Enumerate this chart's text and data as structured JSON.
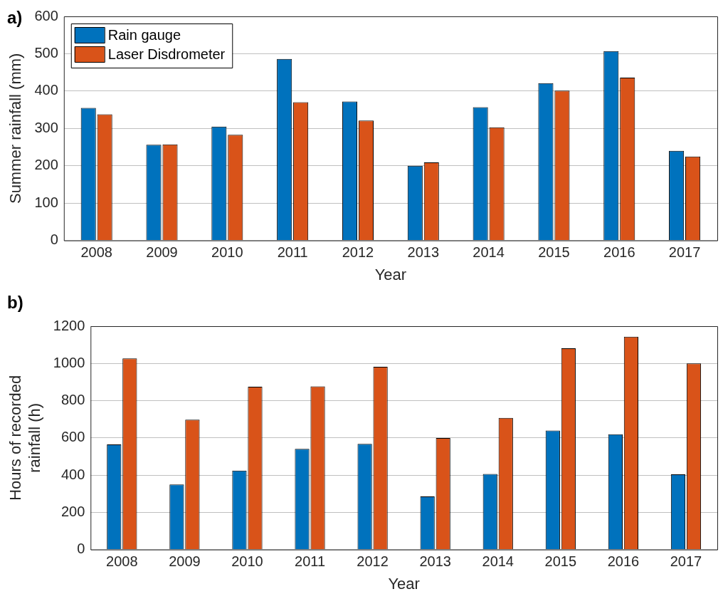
{
  "chart_data": [
    {
      "type": "bar",
      "categories": [
        "2008",
        "2009",
        "2010",
        "2011",
        "2012",
        "2013",
        "2014",
        "2015",
        "2016",
        "2017"
      ],
      "xlabel": "Year",
      "ylabel": "Summer rainfall (mm)",
      "ylim": [
        0,
        600
      ],
      "yticks": [
        0,
        100,
        200,
        300,
        400,
        500,
        600
      ],
      "grid": "y",
      "legend": "top left",
      "annotations": [
        "a)"
      ],
      "series": [
        {
          "name": "Rain gauge",
          "color": "#0072bd",
          "values": [
            355,
            256,
            305,
            486,
            372,
            200,
            357,
            421,
            507,
            240
          ]
        },
        {
          "name": "Laser Disdrometer",
          "color": "#d95319",
          "values": [
            338,
            257,
            283,
            370,
            321,
            209,
            303,
            401,
            436,
            225
          ]
        }
      ]
    },
    {
      "type": "bar",
      "categories": [
        "2008",
        "2009",
        "2010",
        "2011",
        "2012",
        "2013",
        "2014",
        "2015",
        "2016",
        "2017"
      ],
      "xlabel": "Year",
      "ylabel": "Hours of recorded rainfall (h)",
      "ylim": [
        0,
        1200
      ],
      "yticks": [
        0,
        200,
        400,
        600,
        800,
        1000,
        1200
      ],
      "grid": "y",
      "annotations": [
        "b)"
      ],
      "series": [
        {
          "color": "#0072bd",
          "values": [
            565,
            350,
            424,
            541,
            568,
            285,
            406,
            639,
            619,
            404
          ]
        },
        {
          "color": "#d95319",
          "values": [
            1027,
            698,
            875,
            877,
            982,
            599,
            707,
            1081,
            1144,
            1000
          ]
        }
      ]
    }
  ]
}
